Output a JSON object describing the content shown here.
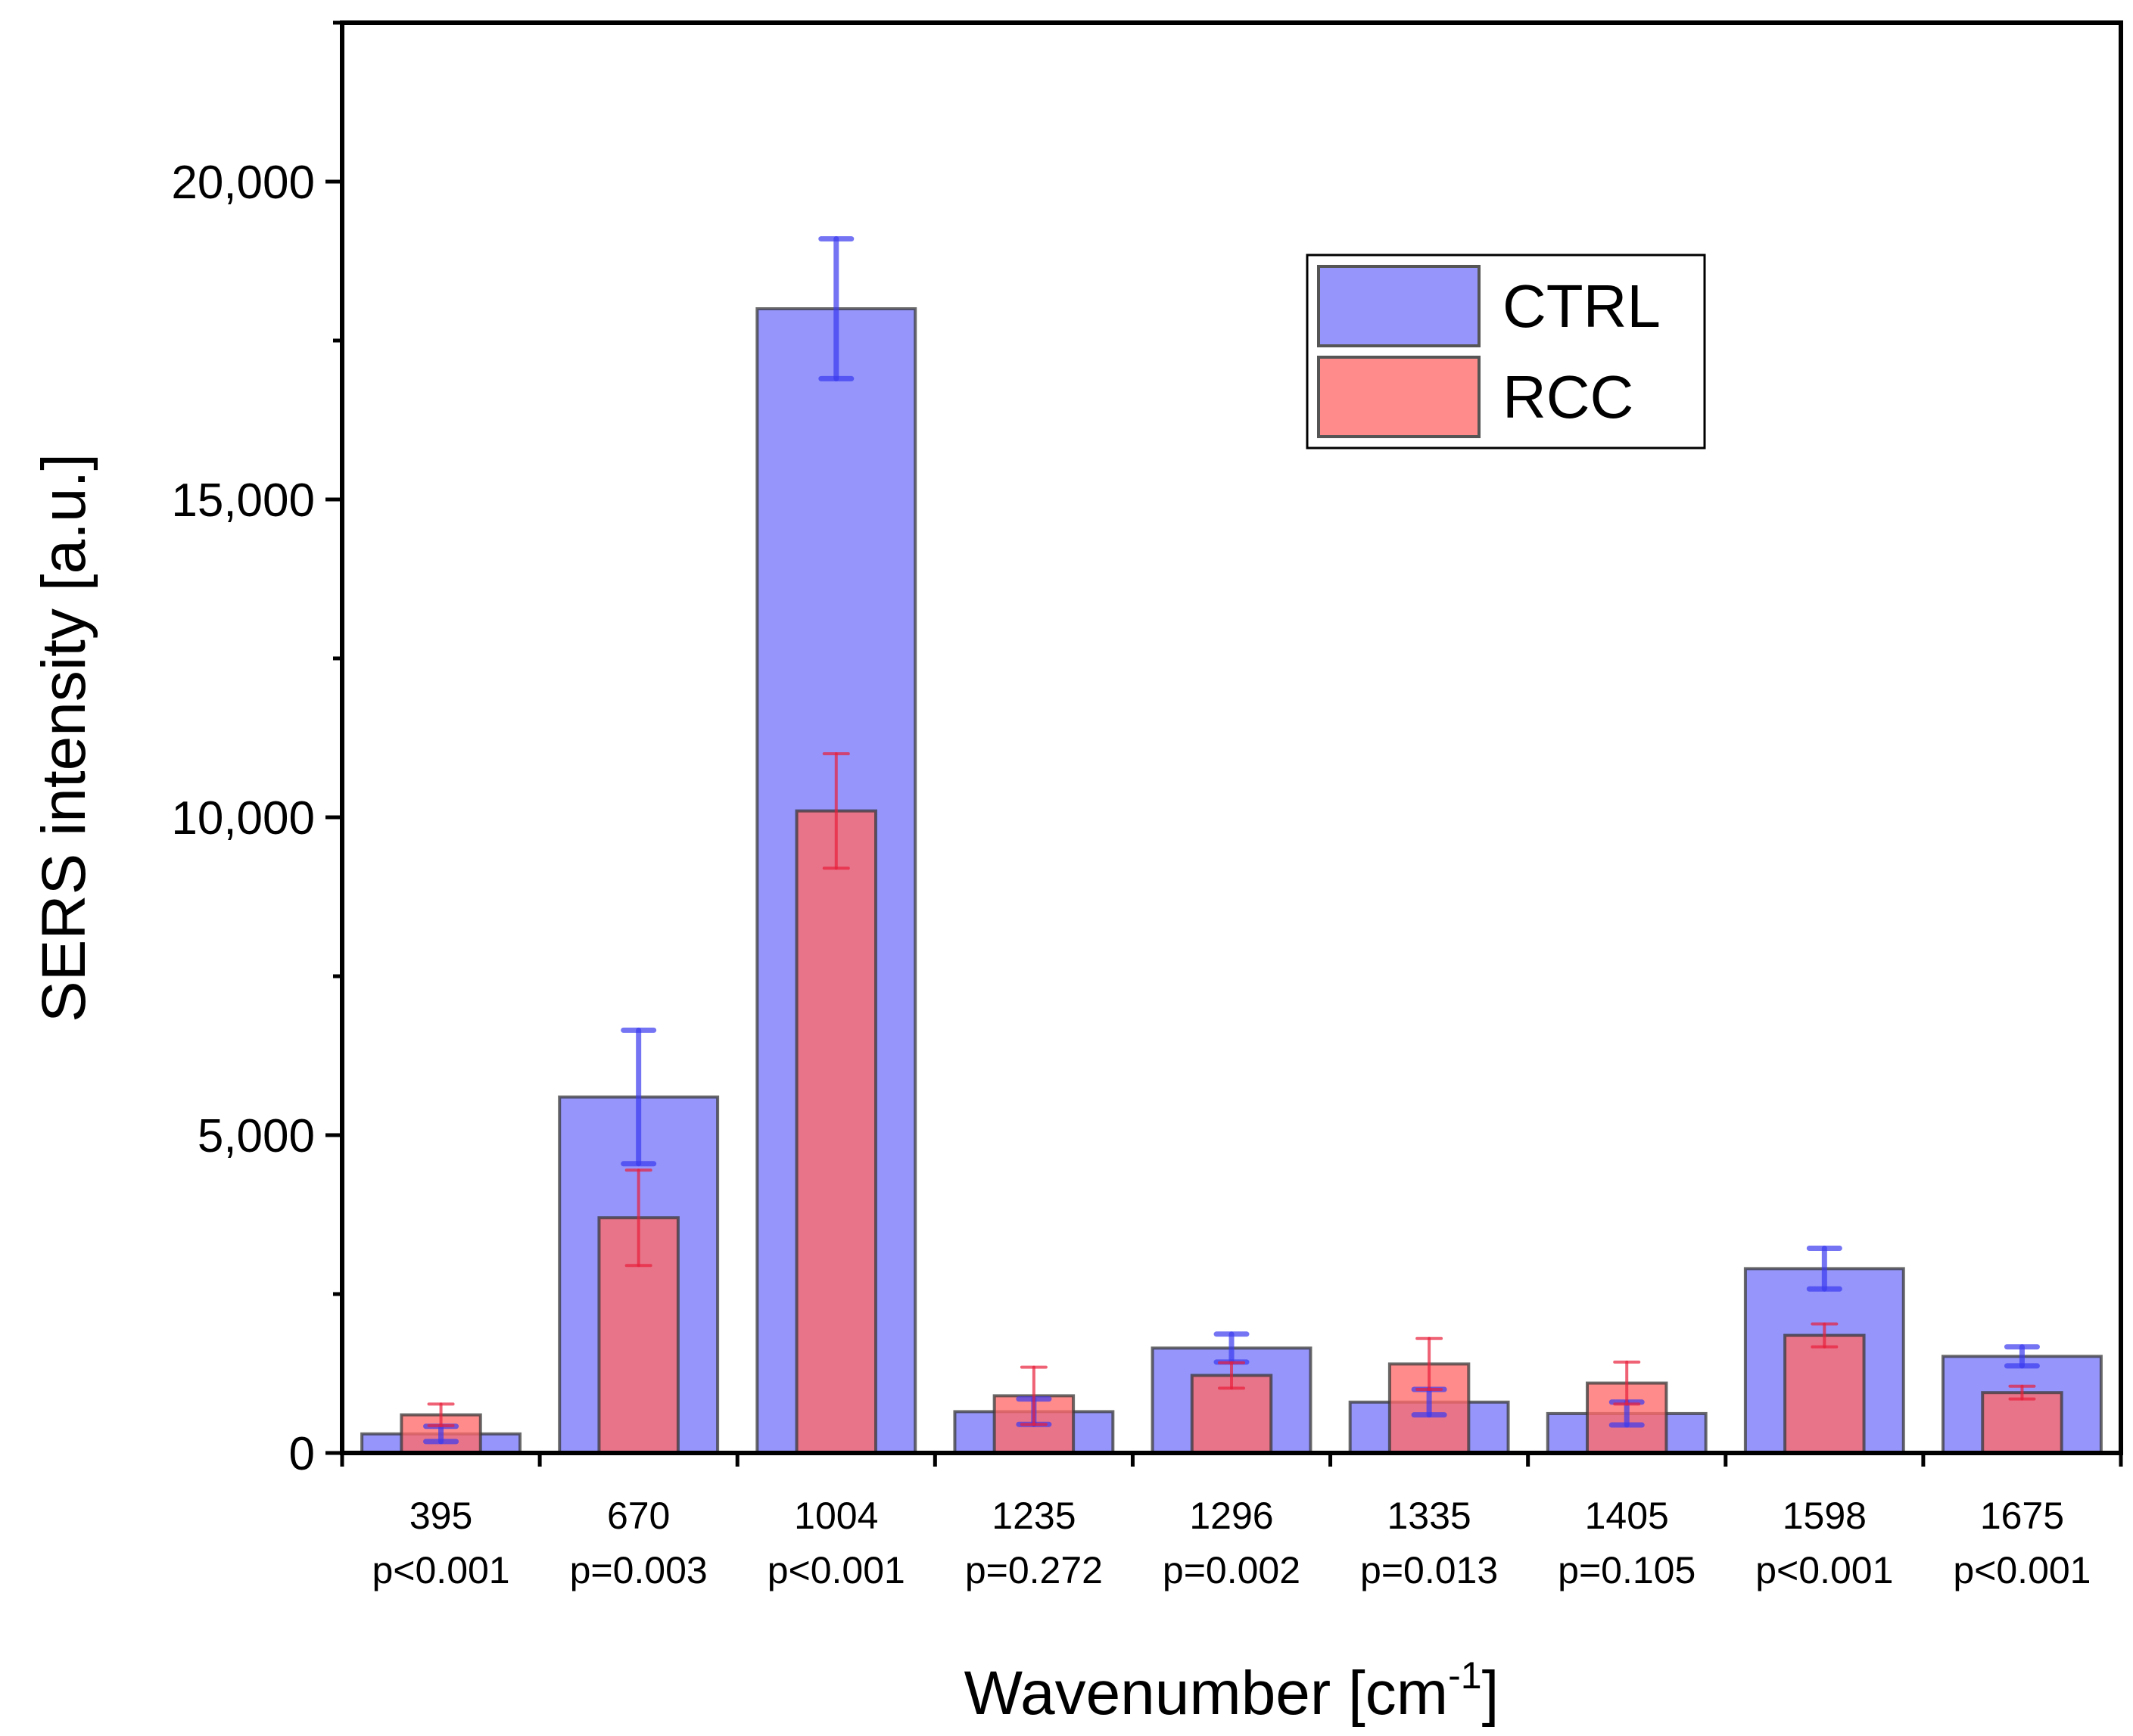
{
  "chart_data": {
    "type": "bar",
    "title": "",
    "xlabel": "Wavenumber [cm",
    "xlabel_sup": "-1",
    "xlabel_end": "]",
    "ylabel": "SERS intensity [a.u.]",
    "ylim": [
      0,
      22500
    ],
    "yticks": [
      0,
      5000,
      10000,
      15000,
      20000
    ],
    "ytick_labels": [
      "0",
      "5,000",
      "10,000",
      "15,000",
      "20,000"
    ],
    "grid": false,
    "legend_position": "top-right",
    "categories": [
      "395",
      "670",
      "1004",
      "1235",
      "1296",
      "1335",
      "1405",
      "1598",
      "1675"
    ],
    "p_values": [
      "p<0.001",
      "p=0.003",
      "p<0.001",
      "p=0.272",
      "p=0.002",
      "p=0.013",
      "p=0.105",
      "p<0.001",
      "p<0.001"
    ],
    "series": [
      {
        "name": "CTRL",
        "color": "#7b7bfa",
        "error_color": "#3b3bf0",
        "values": [
          300,
          5600,
          18000,
          650,
          1650,
          800,
          620,
          2900,
          1520
        ],
        "errors": [
          120,
          1050,
          1100,
          200,
          220,
          200,
          180,
          320,
          150
        ]
      },
      {
        "name": "RCC",
        "color": "#ff6a6a",
        "error_color": "#e8203a",
        "values": [
          600,
          3700,
          10100,
          900,
          1220,
          1400,
          1100,
          1850,
          950
        ],
        "errors": [
          170,
          750,
          900,
          450,
          200,
          400,
          330,
          180,
          100
        ]
      }
    ]
  }
}
